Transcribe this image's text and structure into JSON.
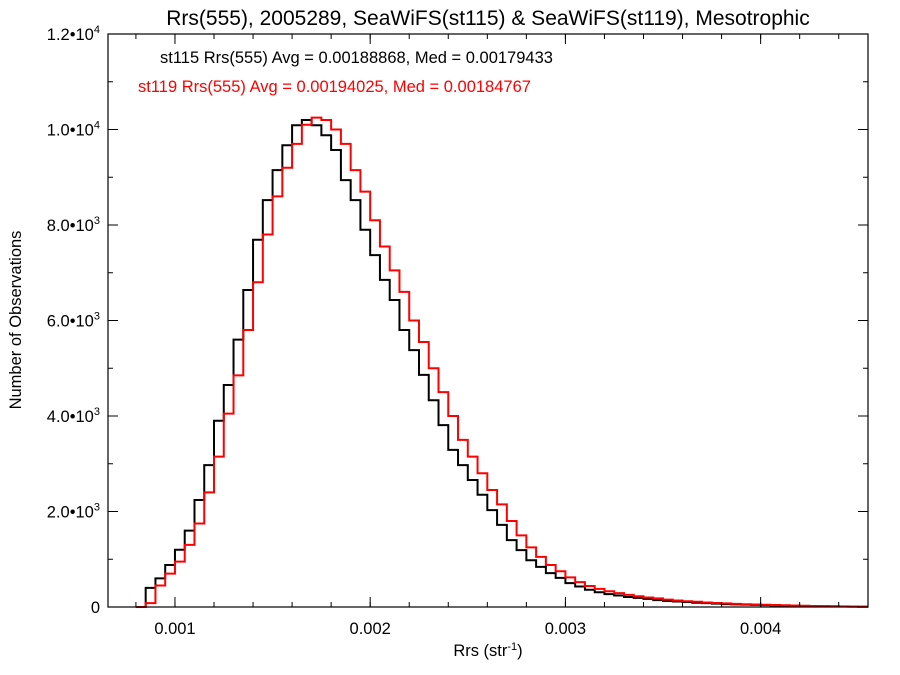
{
  "chart_data": {
    "type": "histogram",
    "title": "Rrs(555), 2005289, SeaWiFS(st115) & SeaWiFS(st119), Mesotrophic",
    "xlabel": "Rrs (str",
    "xlabel_sup": "-1",
    "xlabel_end": ")",
    "ylabel": "Number of Observations",
    "xlim": [
      0.000657,
      0.00455
    ],
    "ylim": [
      0,
      12000
    ],
    "x_ticks": [
      {
        "value": 0.001,
        "label": "0.001"
      },
      {
        "value": 0.002,
        "label": "0.002"
      },
      {
        "value": 0.003,
        "label": "0.003"
      },
      {
        "value": 0.004,
        "label": "0.004"
      }
    ],
    "x_minor_step": 0.0002,
    "y_ticks": [
      {
        "value": 0,
        "mant": "0",
        "exp": ""
      },
      {
        "value": 2000,
        "mant": "2.0•10",
        "exp": "3"
      },
      {
        "value": 4000,
        "mant": "4.0•10",
        "exp": "3"
      },
      {
        "value": 6000,
        "mant": "6.0•10",
        "exp": "3"
      },
      {
        "value": 8000,
        "mant": "8.0•10",
        "exp": "3"
      },
      {
        "value": 10000,
        "mant": "1.0•10",
        "exp": "4"
      },
      {
        "value": 12000,
        "mant": "1.2•10",
        "exp": "4"
      }
    ],
    "y_minor_step": 1000,
    "bin_start": 0.0008,
    "bin_width": 5e-05,
    "series": [
      {
        "name": "st115",
        "color": "#000000",
        "annotation": "st115 Rrs(555) Avg = 0.00188868, Med = 0.00179433",
        "values": [
          0,
          400,
          600,
          880,
          1200,
          1600,
          2240,
          2970,
          3900,
          4650,
          5600,
          6640,
          7690,
          8520,
          9150,
          9670,
          10090,
          10200,
          10090,
          9880,
          9570,
          8940,
          8520,
          7900,
          7370,
          6850,
          6430,
          5800,
          5380,
          4860,
          4330,
          3810,
          3290,
          2970,
          2660,
          2350,
          2030,
          1720,
          1400,
          1190,
          980,
          840,
          710,
          610,
          500,
          430,
          360,
          310,
          270,
          240,
          210,
          190,
          170,
          145,
          125,
          115,
          105,
          90,
          80,
          70,
          60,
          55,
          50,
          45,
          40,
          35,
          30,
          25,
          20,
          18,
          15,
          12,
          10,
          8,
          6
        ]
      },
      {
        "name": "st119",
        "color": "#ff0000",
        "annotation": "st119 Rrs(555) Avg = 0.00194025, Med = 0.00184767",
        "values": [
          0,
          80,
          450,
          700,
          950,
          1300,
          1750,
          2400,
          3150,
          4050,
          4850,
          5800,
          6800,
          7800,
          8600,
          9200,
          9700,
          10100,
          10250,
          10200,
          10000,
          9700,
          9150,
          8700,
          8100,
          7550,
          7050,
          6600,
          6000,
          5550,
          5000,
          4500,
          4000,
          3500,
          3150,
          2800,
          2450,
          2150,
          1800,
          1500,
          1250,
          1050,
          880,
          750,
          620,
          520,
          440,
          380,
          330,
          290,
          255,
          225,
          200,
          180,
          155,
          135,
          120,
          110,
          95,
          85,
          75,
          65,
          58,
          52,
          47,
          42,
          37,
          32,
          27,
          22,
          19,
          16,
          13,
          11,
          9
        ]
      }
    ]
  }
}
